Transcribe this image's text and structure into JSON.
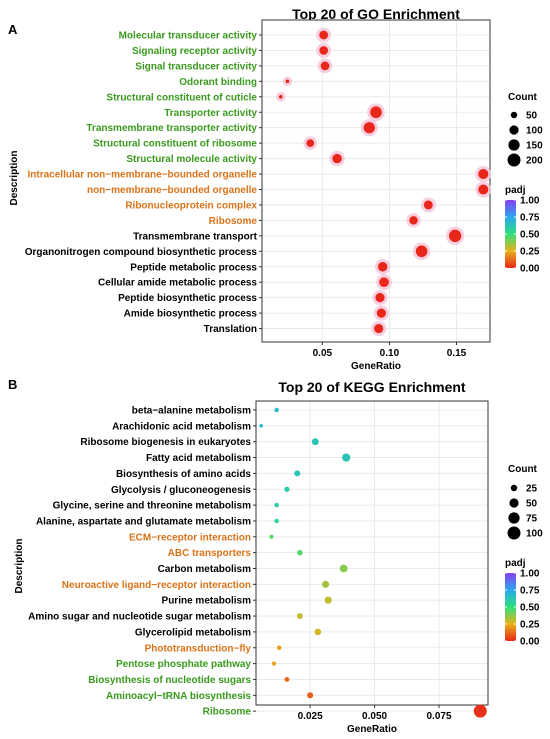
{
  "colors": {
    "mf": "#3a9a1e",
    "cc": "#d9731a",
    "bp": "#000000",
    "kegg_orange": "#d9731a",
    "kegg_green": "#3a9a1e",
    "kegg_black": "#000000"
  },
  "chart_data": [
    {
      "panel": "A",
      "type": "scatter",
      "title": "Top 20 of GO Enrichment",
      "xlabel": "GeneRatio",
      "ylabel": "Description",
      "xlim": [
        0.005,
        0.175
      ],
      "xticks": [
        0.05,
        0.1,
        0.15
      ],
      "xtick_labels": [
        "0.05",
        "0.10",
        "0.15"
      ],
      "grid": true,
      "legend_position": "right",
      "size_legend": {
        "title": "Count",
        "values": [
          50,
          100,
          150,
          200
        ],
        "labels": [
          "50",
          "100",
          "150",
          "200"
        ]
      },
      "color_legend": {
        "title": "padj",
        "range": [
          0,
          1
        ],
        "labels": [
          "1.00",
          "0.75",
          "0.50",
          "0.25",
          "0.00"
        ]
      },
      "points": [
        {
          "term": "Molecular transducer activity",
          "category": "mf",
          "x": 0.051,
          "count": 90,
          "padj": 0.0
        },
        {
          "term": "Signaling receptor activity",
          "category": "mf",
          "x": 0.051,
          "count": 88,
          "padj": 0.0
        },
        {
          "term": "Signal transducer activity",
          "category": "mf",
          "x": 0.052,
          "count": 90,
          "padj": 0.0
        },
        {
          "term": "Odorant binding",
          "category": "mf",
          "x": 0.024,
          "count": 15,
          "padj": 0.0
        },
        {
          "term": "Structural constituent of cuticle",
          "category": "mf",
          "x": 0.019,
          "count": 10,
          "padj": 0.0
        },
        {
          "term": "Transporter activity",
          "category": "mf",
          "x": 0.09,
          "count": 160,
          "padj": 0.0
        },
        {
          "term": "Transmembrane transporter activity",
          "category": "mf",
          "x": 0.085,
          "count": 150,
          "padj": 0.0
        },
        {
          "term": "Structural constituent of ribosome",
          "category": "mf",
          "x": 0.041,
          "count": 70,
          "padj": 0.0
        },
        {
          "term": "Structural molecule activity",
          "category": "mf",
          "x": 0.061,
          "count": 105,
          "padj": 0.0
        },
        {
          "term": "Intracellular non−membrane−bounded organelle",
          "category": "cc",
          "x": 0.17,
          "count": 120,
          "padj": 0.0
        },
        {
          "term": "non−membrane−bounded organelle",
          "category": "cc",
          "x": 0.17,
          "count": 120,
          "padj": 0.0
        },
        {
          "term": "Ribonucleoprotein complex",
          "category": "cc",
          "x": 0.129,
          "count": 95,
          "padj": 0.0
        },
        {
          "term": "Ribosome",
          "category": "cc",
          "x": 0.118,
          "count": 85,
          "padj": 0.0
        },
        {
          "term": "Transmembrane transport",
          "category": "bp",
          "x": 0.149,
          "count": 180,
          "padj": 0.0
        },
        {
          "term": "Organonitrogen compound biosynthetic process",
          "category": "bp",
          "x": 0.124,
          "count": 160,
          "padj": 0.0
        },
        {
          "term": "Peptide metabolic process",
          "category": "bp",
          "x": 0.095,
          "count": 105,
          "padj": 0.0
        },
        {
          "term": "Cellular amide metabolic process",
          "category": "bp",
          "x": 0.096,
          "count": 110,
          "padj": 0.0
        },
        {
          "term": "Peptide biosynthetic process",
          "category": "bp",
          "x": 0.093,
          "count": 100,
          "padj": 0.0
        },
        {
          "term": "Amide biosynthetic process",
          "category": "bp",
          "x": 0.094,
          "count": 100,
          "padj": 0.0
        },
        {
          "term": "Translation",
          "category": "bp",
          "x": 0.092,
          "count": 100,
          "padj": 0.0
        }
      ]
    },
    {
      "panel": "B",
      "type": "scatter",
      "title": "Top 20 of KEGG Enrichment",
      "xlabel": "GeneRatio",
      "ylabel": "Description",
      "xlim": [
        0.004,
        0.094
      ],
      "xticks": [
        0.025,
        0.05,
        0.075
      ],
      "xtick_labels": [
        "0.025",
        "0.050",
        "0.075"
      ],
      "grid": true,
      "legend_position": "right",
      "size_legend": {
        "title": "Count",
        "values": [
          25,
          50,
          75,
          100
        ],
        "labels": [
          "25",
          "50",
          "75",
          "100"
        ]
      },
      "color_legend": {
        "title": "padj",
        "range": [
          0,
          1
        ],
        "labels": [
          "1.00",
          "0.75",
          "0.50",
          "0.25",
          "0.00"
        ]
      },
      "points": [
        {
          "term": "beta−alanine metabolism",
          "category": "kegg_black",
          "x": 0.012,
          "count": 12,
          "padj": 0.65
        },
        {
          "term": "Arachidonic acid metabolism",
          "category": "kegg_black",
          "x": 0.006,
          "count": 5,
          "padj": 0.68
        },
        {
          "term": "Ribosome biogenesis in eukaryotes",
          "category": "kegg_black",
          "x": 0.027,
          "count": 28,
          "padj": 0.62
        },
        {
          "term": "Fatty acid metabolism",
          "category": "kegg_black",
          "x": 0.039,
          "count": 40,
          "padj": 0.63
        },
        {
          "term": "Biosynthesis of amino acids",
          "category": "kegg_black",
          "x": 0.02,
          "count": 22,
          "padj": 0.62
        },
        {
          "term": "Glycolysis / gluconeogenesis",
          "category": "kegg_black",
          "x": 0.016,
          "count": 16,
          "padj": 0.6
        },
        {
          "term": "Glycine, serine and threonine metabolism",
          "category": "kegg_black",
          "x": 0.012,
          "count": 12,
          "padj": 0.6
        },
        {
          "term": "Alanine, aspartate and glutamate metabolism",
          "category": "kegg_black",
          "x": 0.012,
          "count": 12,
          "padj": 0.57
        },
        {
          "term": "ECM−receptor interaction",
          "category": "kegg_orange",
          "x": 0.01,
          "count": 10,
          "padj": 0.45
        },
        {
          "term": "ABC transporters",
          "category": "kegg_orange",
          "x": 0.021,
          "count": 18,
          "padj": 0.45
        },
        {
          "term": "Carbon metabolism",
          "category": "kegg_black",
          "x": 0.038,
          "count": 36,
          "padj": 0.38
        },
        {
          "term": "Neuroactive ligand−receptor interaction",
          "category": "kegg_orange",
          "x": 0.031,
          "count": 30,
          "padj": 0.34
        },
        {
          "term": "Purine metabolism",
          "category": "kegg_black",
          "x": 0.032,
          "count": 30,
          "padj": 0.3
        },
        {
          "term": "Amino sugar and nucleotide sugar metabolism",
          "category": "kegg_black",
          "x": 0.021,
          "count": 20,
          "padj": 0.3
        },
        {
          "term": "Glycerolipid metabolism",
          "category": "kegg_black",
          "x": 0.028,
          "count": 26,
          "padj": 0.28
        },
        {
          "term": "Phototransduction−fly",
          "category": "kegg_orange",
          "x": 0.013,
          "count": 12,
          "padj": 0.22
        },
        {
          "term": "Pentose phosphate pathway",
          "category": "kegg_green",
          "x": 0.011,
          "count": 10,
          "padj": 0.22
        },
        {
          "term": "Biosynthesis of nucleotide sugars",
          "category": "kegg_green",
          "x": 0.016,
          "count": 14,
          "padj": 0.12
        },
        {
          "term": "Aminoacyl−tRNA biosynthesis",
          "category": "kegg_green",
          "x": 0.025,
          "count": 22,
          "padj": 0.1
        },
        {
          "term": "Ribosome",
          "category": "kegg_green",
          "x": 0.091,
          "count": 100,
          "padj": 0.02
        }
      ]
    }
  ]
}
